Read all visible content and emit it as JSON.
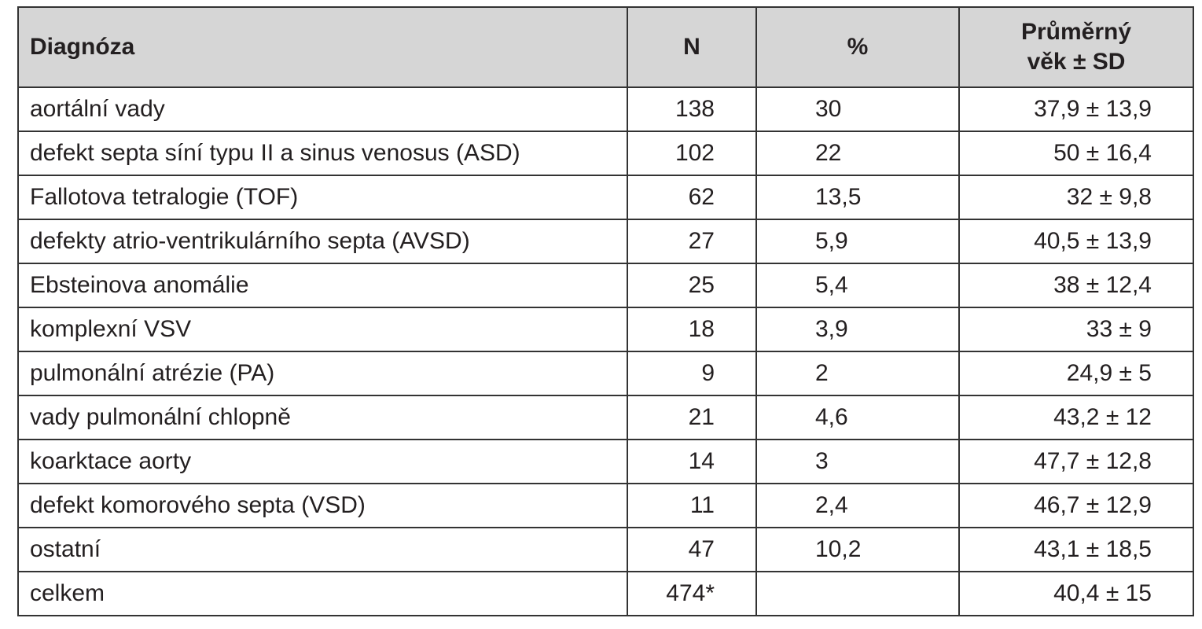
{
  "table": {
    "header": {
      "diagnosis": "Diagnóza",
      "n": "N",
      "pct": "%",
      "age": "Průměrný věk ± SD"
    },
    "rows": [
      {
        "diagnosis": "aortální vady",
        "n": "138",
        "pct": "30",
        "age": "37,9 ± 13,9"
      },
      {
        "diagnosis": "defekt septa síní typu II a sinus venosus (ASD)",
        "n": "102",
        "pct": "22",
        "age": "50 ± 16,4"
      },
      {
        "diagnosis": "Fallotova tetralogie (TOF)",
        "n": "62",
        "pct": "13,5",
        "age": "32 ± 9,8"
      },
      {
        "diagnosis": "defekty atrio-ventrikulárního septa (AVSD)",
        "n": "27",
        "pct": "5,9",
        "age": "40,5 ± 13,9"
      },
      {
        "diagnosis": "Ebsteinova anomálie",
        "n": "25",
        "pct": "5,4",
        "age": "38 ± 12,4"
      },
      {
        "diagnosis": "komplexní VSV",
        "n": "18",
        "pct": "3,9",
        "age": "33 ± 9"
      },
      {
        "diagnosis": "pulmonální atrézie (PA)",
        "n": "9",
        "pct": "2",
        "age": "24,9 ± 5"
      },
      {
        "diagnosis": "vady pulmonální chlopně",
        "n": "21",
        "pct": "4,6",
        "age": "43,2 ± 12"
      },
      {
        "diagnosis": "koarktace aorty",
        "n": "14",
        "pct": "3",
        "age": "47,7 ± 12,8"
      },
      {
        "diagnosis": "defekt komorového septa (VSD)",
        "n": "11",
        "pct": "2,4",
        "age": "46,7 ± 12,9"
      },
      {
        "diagnosis": "ostatní",
        "n": "47",
        "pct": "10,2",
        "age": "43,1 ± 18,5"
      },
      {
        "diagnosis": "celkem",
        "n": "474*",
        "age": "40,4 ± 15"
      }
    ]
  }
}
